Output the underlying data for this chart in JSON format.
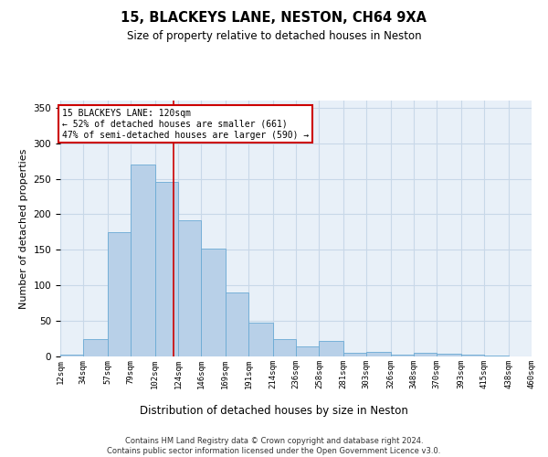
{
  "title1": "15, BLACKEYS LANE, NESTON, CH64 9XA",
  "title2": "Size of property relative to detached houses in Neston",
  "xlabel": "Distribution of detached houses by size in Neston",
  "ylabel": "Number of detached properties",
  "footnote": "Contains HM Land Registry data © Crown copyright and database right 2024.\nContains public sector information licensed under the Open Government Licence v3.0.",
  "bin_edges": [
    12,
    34,
    57,
    79,
    102,
    124,
    146,
    169,
    191,
    214,
    236,
    258,
    281,
    303,
    326,
    348,
    370,
    393,
    415,
    438,
    460
  ],
  "bar_heights": [
    2,
    25,
    175,
    270,
    245,
    192,
    152,
    90,
    47,
    25,
    14,
    22,
    5,
    7,
    3,
    5,
    4,
    2,
    1,
    0
  ],
  "bar_color": "#b8d0e8",
  "bar_edge_color": "#6aaad4",
  "grid_color": "#c8d8e8",
  "bg_color": "#e8f0f8",
  "property_line_x": 120,
  "property_line_color": "#cc0000",
  "annotation_text": "15 BLACKEYS LANE: 120sqm\n← 52% of detached houses are smaller (661)\n47% of semi-detached houses are larger (590) →",
  "annotation_box_color": "#cc0000",
  "ylim": [
    0,
    360
  ],
  "yticks": [
    0,
    50,
    100,
    150,
    200,
    250,
    300,
    350
  ]
}
